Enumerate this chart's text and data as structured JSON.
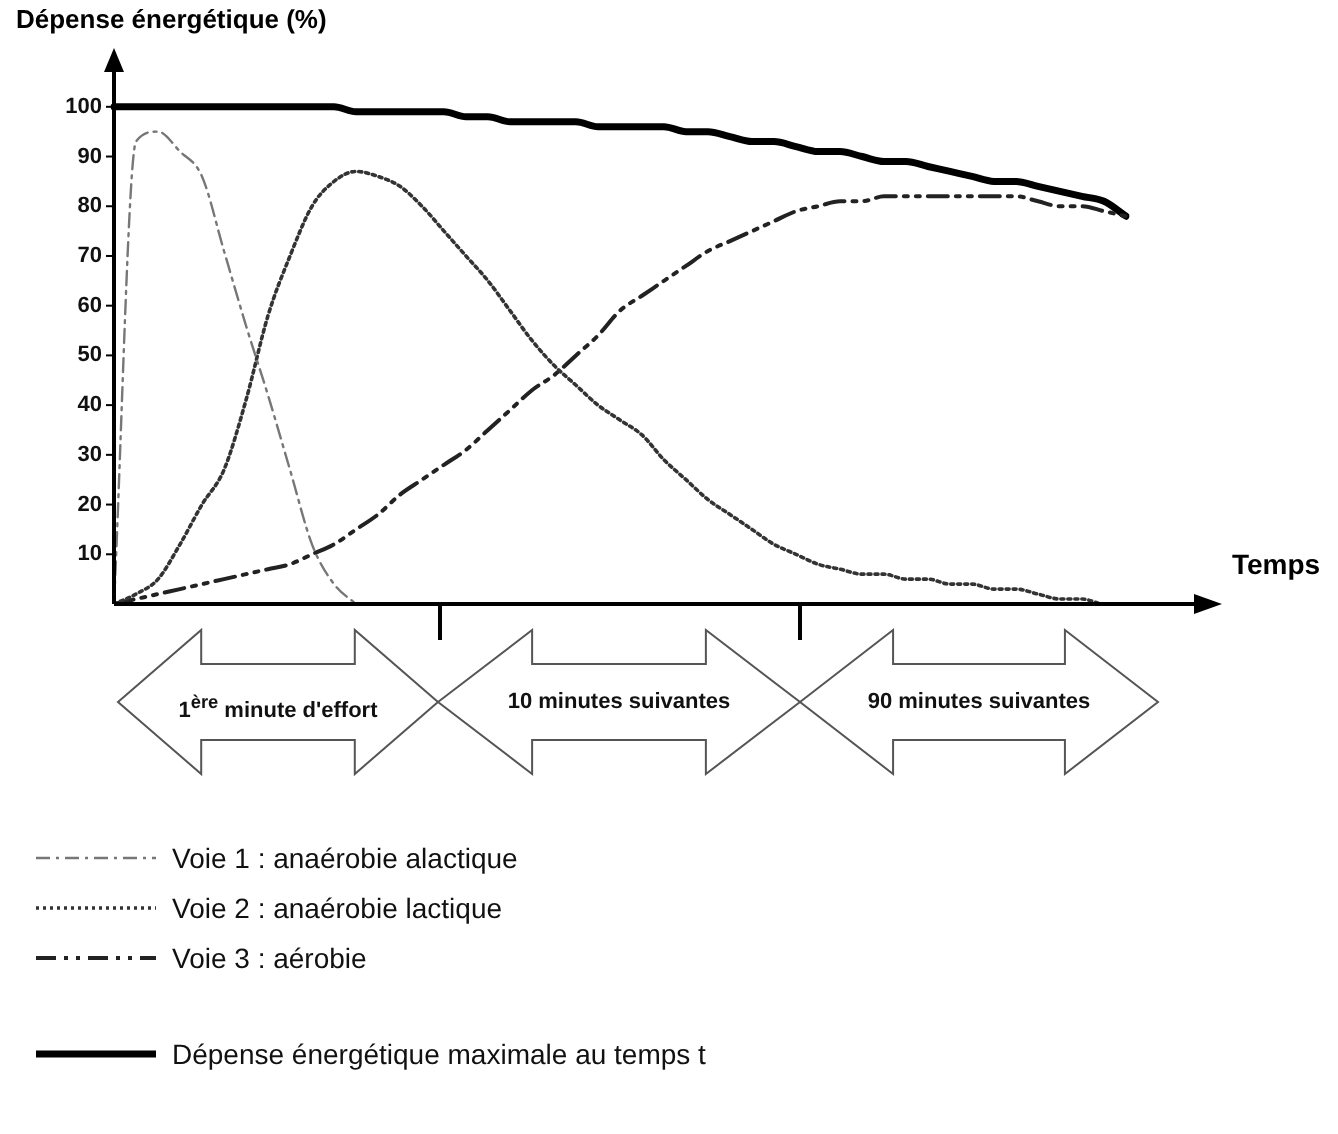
{
  "chart_data": {
    "type": "line",
    "ylabel": "Dépense énergétique (%)",
    "xlabel": "Temps",
    "categories": [
      null,
      null,
      null,
      null,
      null,
      null,
      null,
      null,
      null,
      null,
      null,
      null,
      null,
      null,
      null,
      null,
      null,
      null,
      null,
      null,
      null,
      null,
      null,
      null,
      null,
      null,
      null,
      null,
      null,
      null,
      null,
      null,
      null,
      null,
      null,
      null,
      null,
      null,
      null,
      null,
      null,
      null,
      null,
      null,
      null,
      null,
      null
    ],
    "ylim": [
      0,
      107
    ],
    "yticks": [
      10,
      20,
      30,
      40,
      50,
      60,
      70,
      80,
      90,
      100
    ],
    "grid": false,
    "tick_labels": "y",
    "legend": "bottom",
    "marker": "none",
    "series": [
      {
        "name": "Voie 1 : anaérobie alactique",
        "color": "#777777",
        "line_style": "dashdot",
        "values": [
          0,
          93,
          95,
          91,
          86,
          71,
          56,
          42,
          27,
          12,
          4,
          0,
          null,
          null,
          null,
          null,
          null,
          null,
          null,
          null,
          null,
          null,
          null,
          null,
          null,
          null,
          null,
          null,
          null,
          null,
          null,
          null,
          null,
          null,
          null,
          null,
          null,
          null,
          null,
          null,
          null,
          null,
          null,
          null,
          null,
          null,
          null
        ]
      },
      {
        "name": "Voie 2 : anaérobie lactique",
        "color": "#333333",
        "line_style": "dotted",
        "values": [
          0,
          2,
          5,
          12,
          20,
          27,
          41,
          58,
          70,
          80,
          85,
          87,
          86,
          84,
          80,
          75,
          70,
          65,
          59,
          53,
          48,
          44,
          40,
          37,
          34,
          29,
          25,
          21,
          18,
          15,
          12,
          10,
          8,
          7,
          6,
          6,
          5,
          5,
          4,
          4,
          3,
          3,
          2,
          1,
          1,
          0,
          0
        ]
      },
      {
        "name": "Voie 3 : aérobie",
        "color": "#222222",
        "line_style": "dashdotdot",
        "values": [
          0,
          1,
          2,
          3,
          4,
          5,
          6,
          7,
          8,
          10,
          12,
          15,
          18,
          22,
          25,
          28,
          31,
          35,
          39,
          43,
          46,
          50,
          54,
          59,
          62,
          65,
          68,
          71,
          73,
          75,
          77,
          79,
          80,
          81,
          81,
          82,
          82,
          82,
          82,
          82,
          82,
          82,
          81,
          80,
          80,
          79,
          78
        ]
      },
      {
        "name": "Dépense énergétique maximale au temps t",
        "color": "#000000",
        "line_style": "solid",
        "values": [
          100,
          100,
          100,
          100,
          100,
          100,
          100,
          100,
          100,
          100,
          100,
          99,
          99,
          99,
          99,
          99,
          98,
          98,
          97,
          97,
          97,
          97,
          96,
          96,
          96,
          96,
          95,
          95,
          94,
          93,
          93,
          92,
          91,
          91,
          90,
          89,
          89,
          88,
          87,
          86,
          85,
          85,
          84,
          83,
          82,
          81,
          78
        ]
      }
    ],
    "annotations": [
      "1$^{ère}$ minute d'effort",
      "10 minutes suivantes",
      "90 minutes suivantes"
    ]
  }
}
